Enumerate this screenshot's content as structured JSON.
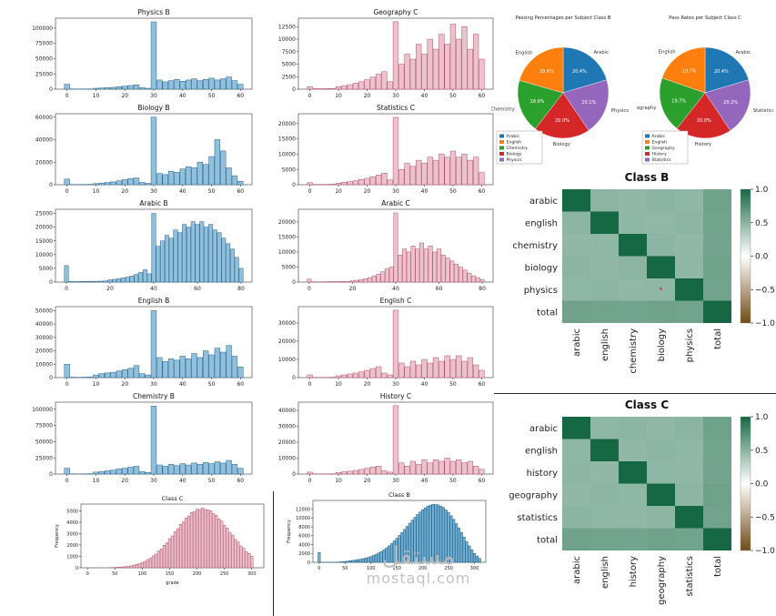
{
  "watermark": {
    "arabic": "مستقل",
    "domain": "mostaql.com"
  },
  "chart_data": [
    {
      "id": "physics-b",
      "type": "bar",
      "title": "Physics B",
      "fill": "#8fc1dc",
      "edge": "#2c5f8a",
      "x0": 0,
      "dx": 2,
      "xlim": [
        -4,
        64
      ],
      "ylim": [
        0,
        116000
      ],
      "xticks": [
        0,
        10,
        20,
        30,
        40,
        50,
        60
      ],
      "yticks": [
        0,
        25000,
        50000,
        75000,
        100000
      ],
      "values": [
        8000,
        300,
        200,
        300,
        400,
        1500,
        2000,
        2500,
        3000,
        4000,
        5000,
        6000,
        7000,
        2500,
        1500,
        110000,
        15000,
        12000,
        14000,
        16000,
        13000,
        15000,
        17000,
        14000,
        16000,
        18000,
        15000,
        17000,
        20000,
        14000,
        8000
      ]
    },
    {
      "id": "geography-c",
      "type": "bar",
      "title": "Geography C",
      "fill": "#ecc2cc",
      "edge": "#b1506b",
      "x0": 0,
      "dx": 2,
      "xlim": [
        -4,
        64
      ],
      "ylim": [
        0,
        14200
      ],
      "xticks": [
        0,
        10,
        20,
        30,
        40,
        50,
        60
      ],
      "yticks": [
        0,
        2500,
        5000,
        7500,
        10000,
        12500
      ],
      "values": [
        500,
        100,
        80,
        100,
        150,
        500,
        700,
        900,
        1200,
        1500,
        1900,
        2400,
        3000,
        3500,
        1500,
        13500,
        5000,
        7000,
        6000,
        9000,
        7000,
        10000,
        8000,
        11000,
        9000,
        13000,
        10000,
        12500,
        8000,
        11000,
        6000
      ]
    },
    {
      "id": "biology-b",
      "type": "bar",
      "title": "Biology B",
      "fill": "#8fc1dc",
      "edge": "#2c5f8a",
      "x0": 0,
      "dx": 2,
      "xlim": [
        -4,
        64
      ],
      "ylim": [
        0,
        63000
      ],
      "xticks": [
        0,
        10,
        20,
        30,
        40,
        50,
        60
      ],
      "yticks": [
        0,
        20000,
        40000,
        60000
      ],
      "values": [
        5000,
        200,
        150,
        200,
        300,
        1000,
        1500,
        2000,
        2500,
        3500,
        4500,
        5500,
        6000,
        2000,
        1200,
        60000,
        10000,
        9000,
        12000,
        11000,
        14000,
        16000,
        15000,
        20000,
        18000,
        25000,
        40000,
        30000,
        15000,
        8000,
        3000
      ]
    },
    {
      "id": "statistics-c",
      "type": "bar",
      "title": "Statistics C",
      "fill": "#ecc2cc",
      "edge": "#b1506b",
      "x0": 0,
      "dx": 2,
      "xlim": [
        -4,
        64
      ],
      "ylim": [
        0,
        23200
      ],
      "xticks": [
        0,
        10,
        20,
        30,
        40,
        50,
        60
      ],
      "yticks": [
        0,
        5000,
        10000,
        15000,
        20000
      ],
      "values": [
        700,
        100,
        80,
        100,
        150,
        500,
        800,
        1000,
        1300,
        1700,
        2100,
        2600,
        3200,
        3800,
        1600,
        22000,
        5000,
        7000,
        6000,
        8000,
        7000,
        9000,
        8000,
        10000,
        9000,
        11000,
        9000,
        10000,
        8000,
        9000,
        4000
      ]
    },
    {
      "id": "arabic-b",
      "type": "bar",
      "title": "Arabic B",
      "fill": "#8fc1dc",
      "edge": "#2c5f8a",
      "x0": 0,
      "dx": 2,
      "xlim": [
        -5,
        85
      ],
      "ylim": [
        0,
        26500
      ],
      "xticks": [
        0,
        20,
        40,
        60,
        80
      ],
      "yticks": [
        0,
        5000,
        10000,
        15000,
        20000,
        25000
      ],
      "values": [
        6000,
        200,
        150,
        200,
        250,
        300,
        250,
        300,
        350,
        400,
        800,
        1000,
        1200,
        1500,
        1800,
        2200,
        2800,
        3500,
        4500,
        3000,
        25000,
        13000,
        15000,
        17000,
        16000,
        19000,
        18000,
        21000,
        20000,
        22000,
        21000,
        22000,
        20000,
        21000,
        19000,
        18000,
        16000,
        14000,
        12000,
        9000,
        5000
      ]
    },
    {
      "id": "arabic-c",
      "type": "bar",
      "title": "Arabic C",
      "fill": "#ecc2cc",
      "edge": "#b1506b",
      "x0": 0,
      "dx": 2,
      "xlim": [
        -5,
        85
      ],
      "ylim": [
        0,
        24200
      ],
      "xticks": [
        0,
        20,
        40,
        60,
        80
      ],
      "yticks": [
        0,
        5000,
        10000,
        15000,
        20000
      ],
      "values": [
        1000,
        100,
        80,
        100,
        120,
        150,
        130,
        150,
        180,
        200,
        400,
        600,
        800,
        1100,
        1500,
        2000,
        2600,
        3400,
        4400,
        5000,
        23000,
        9000,
        11000,
        10000,
        12000,
        11000,
        13000,
        11000,
        12000,
        10000,
        11000,
        9000,
        8000,
        7000,
        6000,
        5000,
        4000,
        3000,
        2000,
        1500,
        800
      ]
    },
    {
      "id": "english-b",
      "type": "bar",
      "title": "English B",
      "fill": "#8fc1dc",
      "edge": "#2c5f8a",
      "x0": 0,
      "dx": 2,
      "xlim": [
        -4,
        64
      ],
      "ylim": [
        0,
        53000
      ],
      "xticks": [
        0,
        10,
        20,
        30,
        40,
        50,
        60
      ],
      "yticks": [
        0,
        10000,
        20000,
        30000,
        40000,
        50000
      ],
      "values": [
        10000,
        300,
        200,
        300,
        400,
        2000,
        3000,
        3500,
        4000,
        5000,
        6000,
        7000,
        9000,
        3000,
        2000,
        50000,
        15000,
        12000,
        14000,
        13000,
        16000,
        14000,
        18000,
        15000,
        20000,
        17000,
        22000,
        19000,
        24000,
        16000,
        8000
      ]
    },
    {
      "id": "english-c",
      "type": "bar",
      "title": "English C",
      "fill": "#ecc2cc",
      "edge": "#b1506b",
      "x0": 0,
      "dx": 2,
      "xlim": [
        -4,
        64
      ],
      "ylim": [
        0,
        39000
      ],
      "xticks": [
        0,
        10,
        20,
        30,
        40,
        50,
        60
      ],
      "yticks": [
        0,
        10000,
        20000,
        30000
      ],
      "values": [
        1500,
        150,
        100,
        150,
        200,
        1000,
        1500,
        2000,
        2500,
        3200,
        4000,
        5000,
        6000,
        2500,
        1500,
        37000,
        8000,
        6000,
        9000,
        7000,
        10000,
        8000,
        11000,
        9000,
        12000,
        10000,
        12000,
        9000,
        11000,
        7000,
        4000
      ]
    },
    {
      "id": "chemistry-b",
      "type": "bar",
      "title": "Chemistry B",
      "fill": "#8fc1dc",
      "edge": "#2c5f8a",
      "x0": 0,
      "dx": 2,
      "xlim": [
        -4,
        64
      ],
      "ylim": [
        0,
        111000
      ],
      "xticks": [
        0,
        10,
        20,
        30,
        40,
        50,
        60
      ],
      "yticks": [
        0,
        25000,
        50000,
        75000,
        100000
      ],
      "values": [
        9000,
        300,
        200,
        300,
        500,
        3000,
        4000,
        5000,
        6000,
        8000,
        9000,
        11000,
        12000,
        4000,
        2500,
        105000,
        14000,
        12000,
        15000,
        13000,
        16000,
        14000,
        17000,
        15000,
        18000,
        16000,
        19000,
        17000,
        21000,
        15000,
        9000
      ]
    },
    {
      "id": "history-c",
      "type": "bar",
      "title": "History C",
      "fill": "#ecc2cc",
      "edge": "#b1506b",
      "x0": 0,
      "dx": 2,
      "xlim": [
        -4,
        64
      ],
      "ylim": [
        0,
        45200
      ],
      "xticks": [
        0,
        10,
        20,
        30,
        40,
        50,
        60
      ],
      "yticks": [
        0,
        10000,
        20000,
        30000,
        40000
      ],
      "values": [
        1200,
        150,
        100,
        150,
        200,
        1000,
        1400,
        1800,
        2300,
        2900,
        3600,
        4400,
        5000,
        2000,
        1200,
        43000,
        7000,
        5000,
        8000,
        6000,
        9000,
        7000,
        9000,
        8000,
        10000,
        8000,
        9000,
        7000,
        8000,
        5000,
        3000
      ]
    },
    {
      "id": "pie-b",
      "type": "pie",
      "title": "Passing Percentages per Subject Class B",
      "slices": [
        {
          "label": "Arabic",
          "value": 20.4,
          "color": "#1f77b4"
        },
        {
          "label": "Physics",
          "value": 20.1,
          "color": "#9467bd"
        },
        {
          "label": "Biology",
          "value": 20.0,
          "color": "#d62728"
        },
        {
          "label": "Chemistry",
          "value": 18.9,
          "color": "#2ca02c"
        },
        {
          "label": "English",
          "value": 20.6,
          "color": "#ff7f0e"
        }
      ],
      "legend": [
        {
          "label": "Arabic",
          "color": "#1f77b4"
        },
        {
          "label": "English",
          "color": "#ff7f0e"
        },
        {
          "label": "Chemistry",
          "color": "#2ca02c"
        },
        {
          "label": "Biology",
          "color": "#d62728"
        },
        {
          "label": "Physics",
          "color": "#9467bd"
        }
      ]
    },
    {
      "id": "pie-c",
      "type": "pie",
      "title": "Pass Rates per Subject Class C",
      "slices": [
        {
          "label": "Arabic",
          "value": 20.4,
          "color": "#1f77b4"
        },
        {
          "label": "Statistics",
          "value": 20.2,
          "color": "#9467bd"
        },
        {
          "label": "History",
          "value": 20.0,
          "color": "#d62728"
        },
        {
          "label": "Geography",
          "value": 19.7,
          "color": "#2ca02c"
        },
        {
          "label": "English",
          "value": 19.7,
          "color": "#ff7f0e"
        }
      ],
      "legend": [
        {
          "label": "Arabic",
          "color": "#1f77b4"
        },
        {
          "label": "English",
          "color": "#ff7f0e"
        },
        {
          "label": "Geography",
          "color": "#2ca02c"
        },
        {
          "label": "History",
          "color": "#d62728"
        },
        {
          "label": "Statistics",
          "color": "#9467bd"
        }
      ]
    },
    {
      "id": "heatmap-b",
      "type": "heatmap",
      "title": "Class B",
      "labels": [
        "arabic",
        "english",
        "chemistry",
        "biology",
        "physics",
        "total"
      ],
      "matrix": [
        [
          1.0,
          0.49,
          0.47,
          0.5,
          0.48,
          0.62
        ],
        [
          0.49,
          1.0,
          0.48,
          0.47,
          0.49,
          0.61
        ],
        [
          0.47,
          0.48,
          1.0,
          0.49,
          0.47,
          0.6
        ],
        [
          0.5,
          0.47,
          0.49,
          1.0,
          0.48,
          0.62
        ],
        [
          0.48,
          0.49,
          0.47,
          0.48,
          1.0,
          0.61
        ],
        [
          0.62,
          0.61,
          0.6,
          0.62,
          0.61,
          1.0
        ]
      ],
      "vmin": -1,
      "vmax": 1,
      "colorbar_ticks": [
        1.0,
        0.5,
        0.0,
        -0.5,
        -1.0
      ],
      "annotation": {
        "row": 4,
        "col": 3,
        "text": "*",
        "color": "#cc2222"
      }
    },
    {
      "id": "heatmap-c",
      "type": "heatmap",
      "title": "Class C",
      "labels": [
        "arabic",
        "english",
        "history",
        "geography",
        "statistics",
        "total"
      ],
      "matrix": [
        [
          1.0,
          0.48,
          0.49,
          0.47,
          0.5,
          0.62
        ],
        [
          0.48,
          1.0,
          0.47,
          0.49,
          0.48,
          0.61
        ],
        [
          0.49,
          0.47,
          1.0,
          0.48,
          0.47,
          0.6
        ],
        [
          0.47,
          0.49,
          0.48,
          1.0,
          0.49,
          0.62
        ],
        [
          0.5,
          0.48,
          0.47,
          0.49,
          1.0,
          0.61
        ],
        [
          0.62,
          0.61,
          0.6,
          0.62,
          0.61,
          1.0
        ]
      ],
      "vmin": -1,
      "vmax": 1,
      "colorbar_ticks": [
        1.0,
        0.5,
        0.0,
        -0.5,
        -1.0
      ]
    },
    {
      "id": "classc-bottom",
      "type": "bar",
      "big": true,
      "title": "Class C",
      "xlabel": "grade",
      "ylabel": "Frequency",
      "fill": "#ecc2cc",
      "edge": "#b1506b",
      "x0": 40,
      "dx": 5,
      "xlim": [
        -12,
        322
      ],
      "ylim": [
        0,
        5600
      ],
      "xticks": [
        0,
        50,
        100,
        150,
        200,
        250,
        300
      ],
      "yticks": [
        0,
        1000,
        2000,
        3000,
        4000,
        5000
      ],
      "values": [
        17,
        25,
        30,
        45,
        55,
        80,
        105,
        130,
        180,
        225,
        300,
        360,
        470,
        560,
        720,
        840,
        1050,
        1210,
        1470,
        1660,
        1980,
        2200,
        2560,
        2800,
        3180,
        3430,
        3820,
        4030,
        4380,
        4550,
        4850,
        4930,
        5150,
        5120,
        5250,
        5130,
        5080,
        5000,
        4760,
        4620,
        4300,
        4110,
        3740,
        3500,
        3120,
        2870,
        2490,
        2260,
        1920,
        1720,
        1420,
        1260,
        1010
      ]
    },
    {
      "id": "classb-bottom",
      "type": "bar",
      "big": true,
      "title": "Class B",
      "ylabel": "Frequency",
      "fill": "#6fb0d4",
      "edge": "#1f577f",
      "x0": 0,
      "dx": 5,
      "xlim": [
        -12,
        322
      ],
      "ylim": [
        0,
        14000
      ],
      "xticks": [
        0,
        50,
        100,
        150,
        200,
        250,
        300
      ],
      "yticks": [
        0,
        2000,
        4000,
        6000,
        8000,
        10000,
        12000
      ],
      "values": [
        2200,
        20,
        10,
        10,
        15,
        20,
        30,
        50,
        80,
        120,
        200,
        270,
        350,
        430,
        510,
        610,
        700,
        830,
        960,
        1120,
        1310,
        1560,
        1820,
        2120,
        2430,
        2820,
        3230,
        3720,
        4230,
        4830,
        5410,
        6080,
        6720,
        7450,
        8120,
        8840,
        9520,
        10180,
        10830,
        11380,
        11920,
        12330,
        12720,
        12940,
        13120,
        13060,
        13010,
        12700,
        12420,
        11860,
        11310,
        10520,
        9720,
        8760,
        7810,
        6760,
        5710,
        4710,
        3720,
        2860,
        2010,
        1410,
        910
      ]
    }
  ]
}
